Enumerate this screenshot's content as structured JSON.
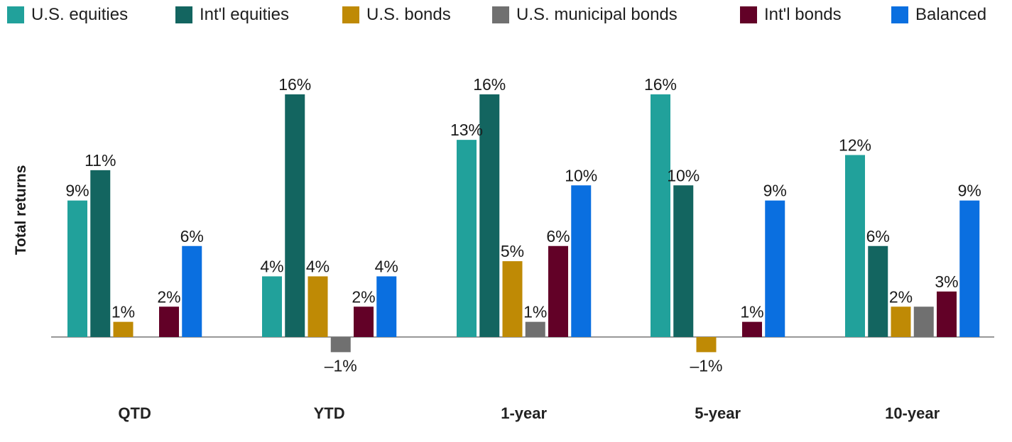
{
  "chart_data": {
    "type": "bar",
    "ylabel": "Total returns",
    "xlabel": "",
    "categories": [
      "QTD",
      "YTD",
      "1-year",
      "5-year",
      "10-year"
    ],
    "series": [
      {
        "name": "U.S. equities",
        "color": "#21a19b",
        "values": [
          9,
          4,
          13,
          16,
          12
        ],
        "labels": [
          "9%",
          "4%",
          "13%",
          "16%",
          "12%"
        ]
      },
      {
        "name": "Int'l equities",
        "color": "#136560",
        "values": [
          11,
          16,
          16,
          10,
          6
        ],
        "labels": [
          "11%",
          "16%",
          "16%",
          "10%",
          "6%"
        ]
      },
      {
        "name": "U.S. bonds",
        "color": "#bf8a05",
        "values": [
          1,
          4,
          5,
          -1,
          2
        ],
        "labels": [
          "1%",
          "4%",
          "5%",
          "–1%",
          "2%"
        ]
      },
      {
        "name": "U.S. municipal bonds",
        "color": "#707070",
        "values": [
          0,
          -1,
          1,
          0,
          2
        ],
        "labels": [
          "",
          "–1%",
          "1%",
          "",
          ""
        ]
      },
      {
        "name": "Int'l bonds",
        "color": "#620127",
        "values": [
          2,
          2,
          6,
          1,
          3
        ],
        "labels": [
          "2%",
          "2%",
          "6%",
          "1%",
          "3%"
        ]
      },
      {
        "name": "Balanced",
        "color": "#0a6fe0",
        "values": [
          6,
          4,
          10,
          9,
          9
        ],
        "labels": [
          "6%",
          "4%",
          "10%",
          "9%",
          "9%"
        ]
      }
    ],
    "ylim": [
      -1,
      16
    ],
    "grid": false,
    "legend_position": "top"
  }
}
